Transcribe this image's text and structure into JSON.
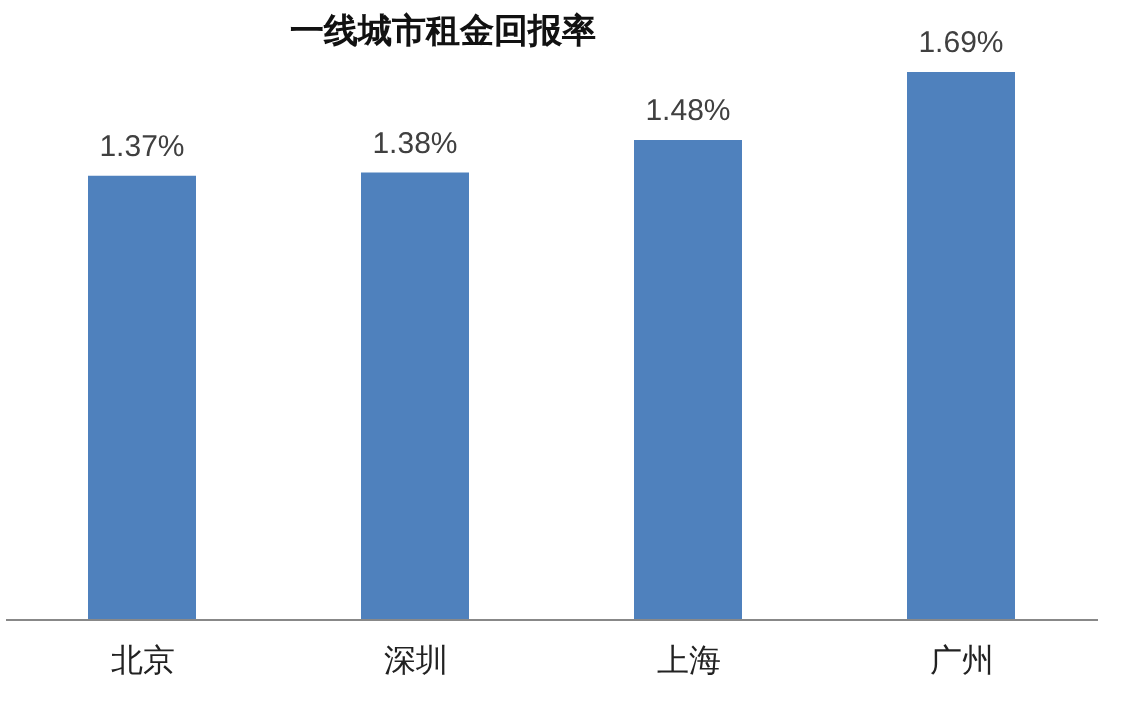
{
  "chart_data": {
    "type": "bar",
    "title": "一线城市租金回报率",
    "categories": [
      "北京",
      "深圳",
      "上海",
      "广州"
    ],
    "values": [
      1.37,
      1.38,
      1.48,
      1.69
    ],
    "value_labels": [
      "1.37%",
      "1.38%",
      "1.48%",
      "1.69%"
    ],
    "color": "#4f81bd",
    "tick_labels": "x"
  }
}
